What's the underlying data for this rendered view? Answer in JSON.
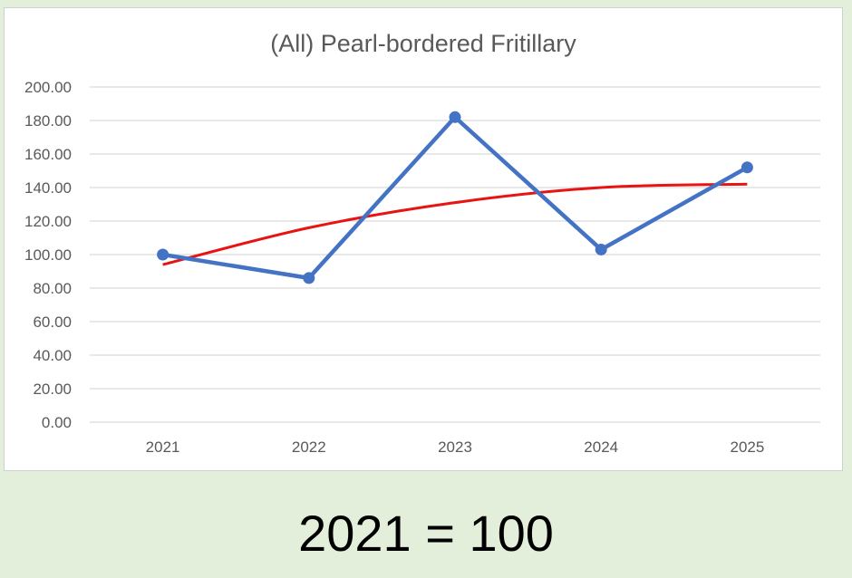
{
  "chart_data": {
    "type": "line",
    "title": "(All) Pearl-bordered Fritillary",
    "xlabel": "",
    "ylabel": "",
    "categories": [
      "2021",
      "2022",
      "2023",
      "2024",
      "2025"
    ],
    "ylim": [
      0,
      200
    ],
    "ytick_labels": [
      "0.00",
      "20.00",
      "40.00",
      "60.00",
      "80.00",
      "100.00",
      "120.00",
      "140.00",
      "160.00",
      "180.00",
      "200.00"
    ],
    "series": [
      {
        "values": [
          100,
          86,
          182,
          103,
          152
        ],
        "color": "#4472c4",
        "markers": true
      }
    ],
    "trendline": {
      "type": "polynomial",
      "color": "#e81414",
      "points": [
        [
          2021,
          94
        ],
        [
          2022,
          116
        ],
        [
          2023,
          131
        ],
        [
          2024,
          140
        ],
        [
          2025,
          142
        ]
      ]
    },
    "grid": true,
    "legend": "none"
  },
  "caption": "2021 = 100"
}
